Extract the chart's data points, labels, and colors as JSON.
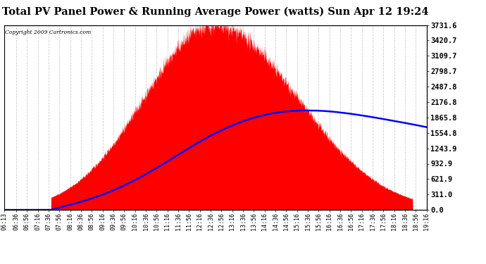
{
  "title": "Total PV Panel Power & Running Average Power (watts) Sun Apr 12 19:24",
  "copyright": "Copyright 2009 Cartronics.com",
  "background_color": "#ffffff",
  "plot_bg_color": "#ffffff",
  "grid_color": "#cccccc",
  "bar_color": "#ff0000",
  "avg_color": "#0000ff",
  "ymin": 0.0,
  "ymax": 3731.6,
  "yticks": [
    0.0,
    311.0,
    621.9,
    932.9,
    1243.9,
    1554.8,
    1865.8,
    2176.8,
    2487.8,
    2798.7,
    3109.7,
    3420.7,
    3731.6
  ],
  "x_tick_labels": [
    "06:13",
    "06:36",
    "06:56",
    "07:16",
    "07:36",
    "07:56",
    "08:16",
    "08:36",
    "08:56",
    "09:16",
    "09:36",
    "09:56",
    "10:16",
    "10:36",
    "10:56",
    "11:16",
    "11:36",
    "11:56",
    "12:16",
    "12:36",
    "12:56",
    "13:16",
    "13:36",
    "13:56",
    "14:16",
    "14:36",
    "14:56",
    "15:16",
    "15:36",
    "15:56",
    "16:16",
    "16:36",
    "16:56",
    "17:16",
    "17:36",
    "17:56",
    "18:16",
    "18:36",
    "18:56",
    "19:16"
  ],
  "figwidth": 6.9,
  "figheight": 3.75,
  "dpi": 100
}
